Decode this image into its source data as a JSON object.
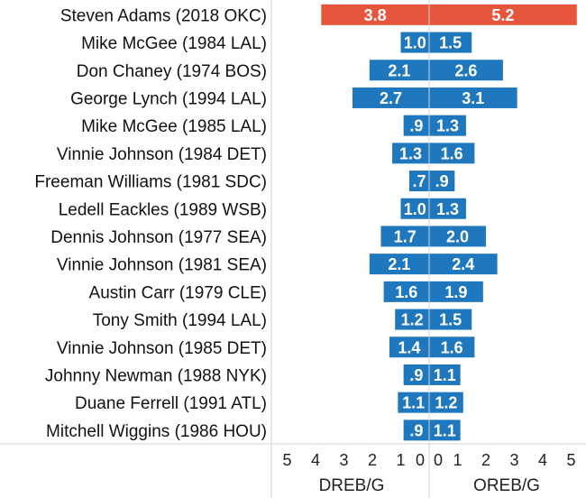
{
  "chart_data": {
    "type": "bar",
    "orientation": "horizontal-diverging",
    "categories": [
      "Steven Adams (2018 OKC)",
      "Mike McGee (1984 LAL)",
      "Don Chaney (1974 BOS)",
      "George Lynch (1994 LAL)",
      "Mike McGee (1985 LAL)",
      "Vinnie Johnson (1984 DET)",
      "Freeman Williams (1981 SDC)",
      "Ledell Eackles (1989 WSB)",
      "Dennis Johnson (1977 SEA)",
      "Vinnie Johnson (1981 SEA)",
      "Austin Carr (1979 CLE)",
      "Tony Smith (1994 LAL)",
      "Vinnie Johnson (1985 DET)",
      "Johnny Newman (1988 NYK)",
      "Duane Ferrell (1991 ATL)",
      "Mitchell Wiggins (1986 HOU)"
    ],
    "series": [
      {
        "name": "DREB/G",
        "values": [
          3.8,
          1.0,
          2.1,
          2.7,
          0.9,
          1.3,
          0.7,
          1.0,
          1.7,
          2.1,
          1.6,
          1.2,
          1.4,
          0.9,
          1.1,
          0.9
        ],
        "labels": [
          "3.8",
          "1.0",
          "2.1",
          "2.7",
          ".9",
          "1.3",
          ".7",
          "1.0",
          "1.7",
          "2.1",
          "1.6",
          "1.2",
          "1.4",
          ".9",
          "1.1",
          ".9"
        ]
      },
      {
        "name": "OREB/G",
        "values": [
          5.2,
          1.5,
          2.6,
          3.1,
          1.3,
          1.6,
          0.9,
          1.3,
          2.0,
          2.4,
          1.9,
          1.5,
          1.6,
          1.1,
          1.2,
          1.1
        ],
        "labels": [
          "5.2",
          "1.5",
          "2.6",
          "3.1",
          "1.3",
          "1.6",
          ".9",
          "1.3",
          "2.0",
          "2.4",
          "1.9",
          "1.5",
          "1.6",
          "1.1",
          "1.2",
          "1.1"
        ]
      }
    ],
    "highlight_index": 0,
    "left_axis": {
      "title": "DREB/G",
      "ticks": [
        5,
        4,
        3,
        2,
        1,
        0
      ],
      "range": [
        0,
        5
      ]
    },
    "right_axis": {
      "title": "OREB/G",
      "ticks": [
        0,
        1,
        2,
        3,
        4,
        5
      ],
      "range": [
        0,
        5
      ]
    },
    "colors": {
      "highlight": "#e8553d",
      "bar": "#1f78bd",
      "bar_text": "#ffffff",
      "grid": "#d3d3d3"
    }
  }
}
